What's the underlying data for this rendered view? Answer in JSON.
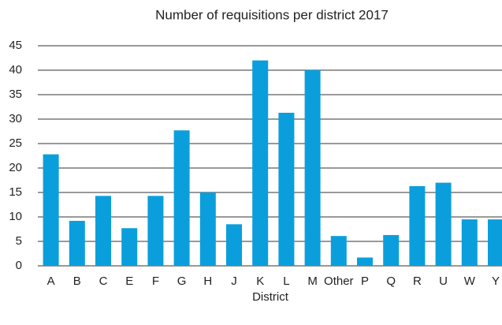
{
  "chart_data": {
    "type": "bar",
    "title": "Number of requisitions per district 2017",
    "x_label": "District",
    "categories": [
      "A",
      "B",
      "C",
      "E",
      "F",
      "G",
      "H",
      "J",
      "K",
      "L",
      "M",
      "Other",
      "P",
      "Q",
      "R",
      "U",
      "W",
      "Y"
    ],
    "values": [
      22.8,
      9.2,
      14.3,
      7.7,
      14.3,
      27.7,
      15,
      8.5,
      42,
      31.3,
      40,
      6.1,
      1.7,
      6.3,
      16.3,
      17,
      9.5,
      9.5
    ],
    "color": "#0a9fdc",
    "ylim": [
      0,
      45
    ],
    "yticks": [
      0,
      5,
      10,
      15,
      20,
      25,
      30,
      35,
      40,
      45
    ],
    "grid": true
  }
}
